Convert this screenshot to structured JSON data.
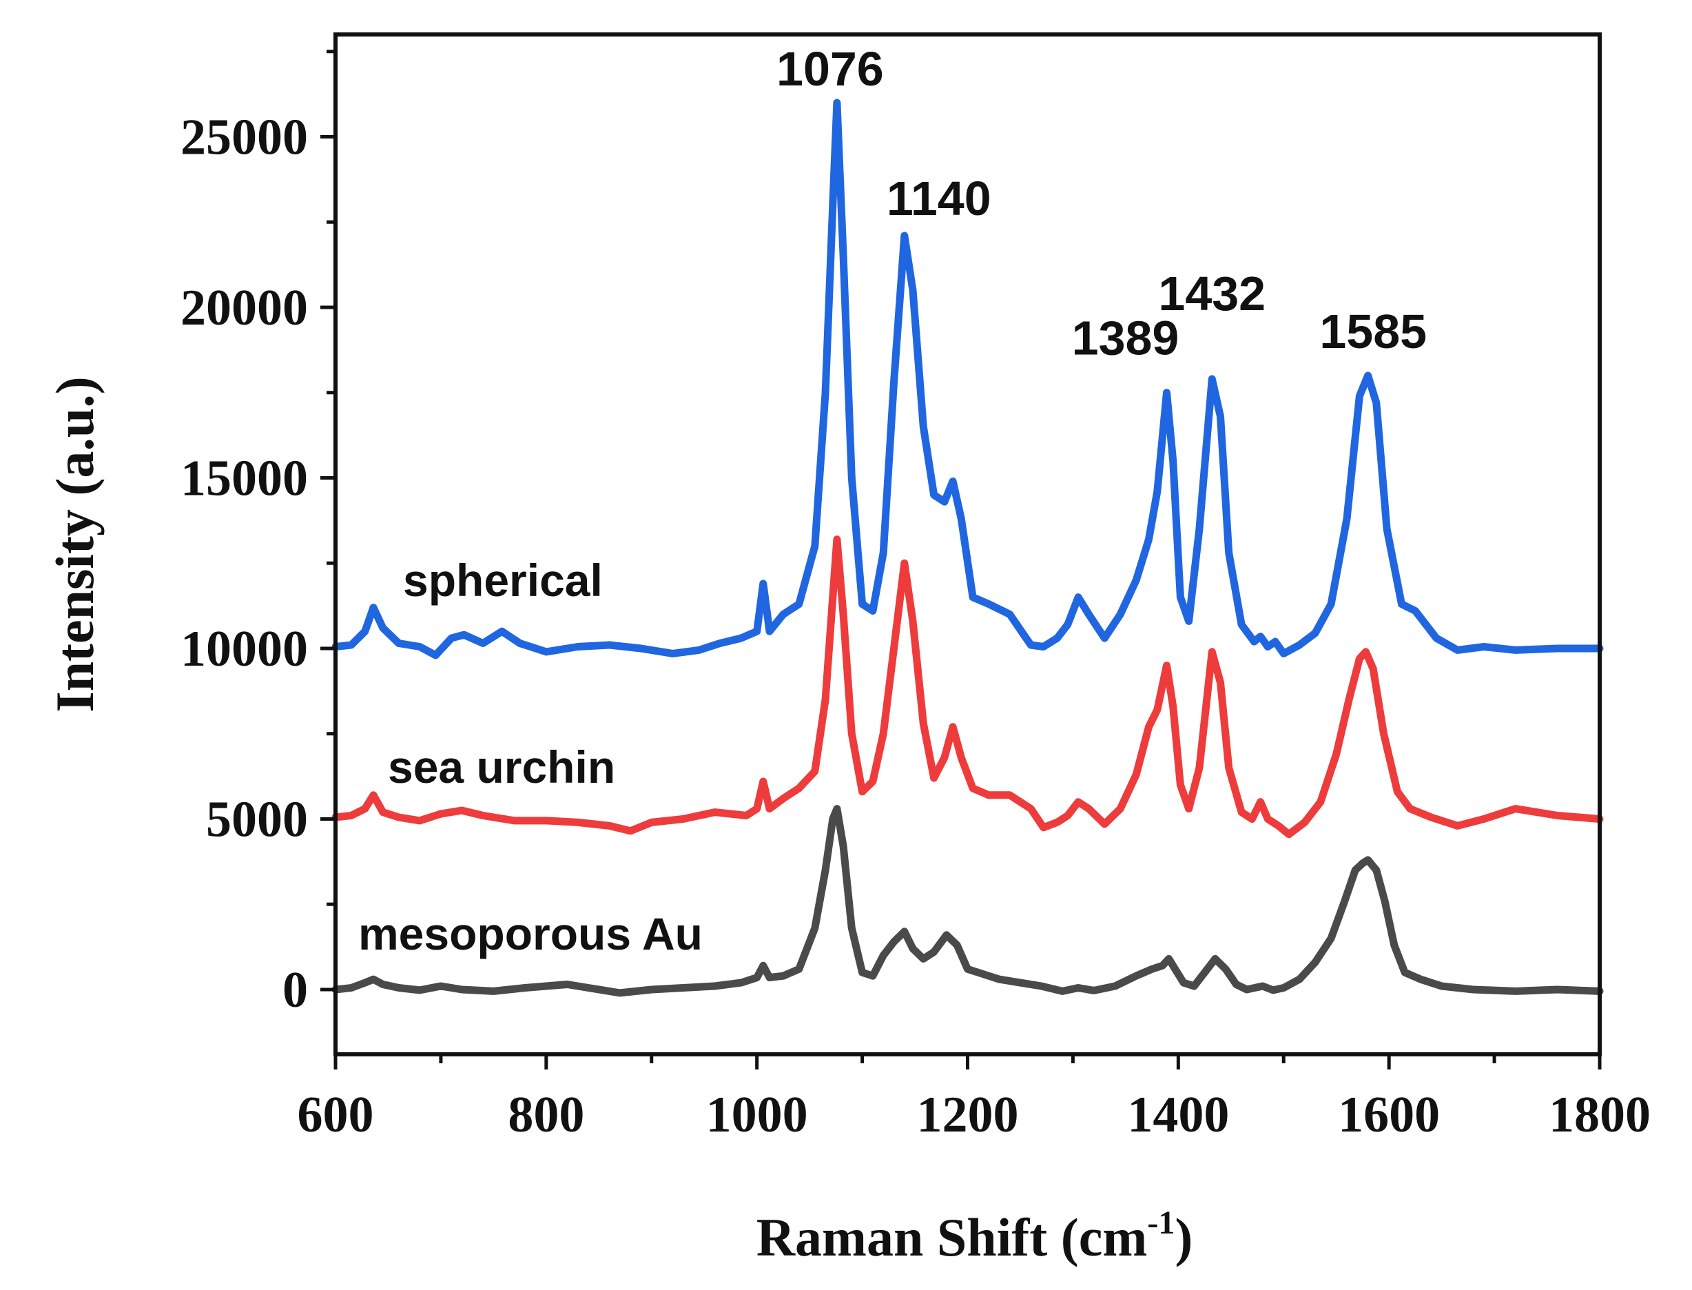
{
  "chart_data": {
    "type": "line",
    "title": "",
    "xlabel": "Raman Shift",
    "xlabel_unit_base": "(cm",
    "xlabel_unit_sup": "-1",
    "xlabel_unit_close": ")",
    "ylabel": "Intensity (a.u.)",
    "xlim": [
      600,
      1800
    ],
    "ylim": [
      -1900,
      28000
    ],
    "x_ticks": [
      600,
      800,
      1000,
      1200,
      1400,
      1600,
      1800
    ],
    "x_tick_labels": [
      "600",
      "800",
      "1000",
      "1200",
      "1400",
      "1600",
      "1800"
    ],
    "y_ticks": [
      0,
      5000,
      10000,
      15000,
      20000,
      25000
    ],
    "y_tick_labels": [
      "0",
      "5000",
      "10000",
      "15000",
      "20000",
      "25000"
    ],
    "series": [
      {
        "name": "spherical",
        "color": "#1f66e0",
        "baseline": 10000,
        "x": [
          600,
          615,
          628,
          636,
          645,
          660,
          680,
          695,
          710,
          722,
          740,
          758,
          775,
          800,
          830,
          860,
          890,
          920,
          945,
          965,
          985,
          1000,
          1006,
          1012,
          1025,
          1040,
          1055,
          1065,
          1072,
          1076,
          1082,
          1090,
          1100,
          1110,
          1120,
          1130,
          1140,
          1148,
          1158,
          1168,
          1178,
          1186,
          1194,
          1205,
          1220,
          1240,
          1260,
          1272,
          1285,
          1295,
          1305,
          1315,
          1330,
          1345,
          1360,
          1372,
          1380,
          1389,
          1395,
          1402,
          1410,
          1420,
          1432,
          1440,
          1448,
          1460,
          1472,
          1478,
          1485,
          1492,
          1500,
          1515,
          1530,
          1545,
          1560,
          1572,
          1580,
          1588,
          1598,
          1612,
          1625,
          1645,
          1665,
          1690,
          1720,
          1760,
          1800
        ],
        "y": [
          10050,
          10100,
          10500,
          11200,
          10600,
          10150,
          10050,
          9800,
          10300,
          10400,
          10150,
          10500,
          10150,
          9900,
          10050,
          10100,
          10000,
          9850,
          9950,
          10150,
          10300,
          10500,
          11900,
          10500,
          11000,
          11300,
          13000,
          17500,
          23000,
          26000,
          21500,
          15000,
          11300,
          11100,
          12800,
          17800,
          22100,
          20500,
          16500,
          14500,
          14300,
          14900,
          13800,
          11500,
          11300,
          11000,
          10100,
          10050,
          10300,
          10700,
          11500,
          11000,
          10300,
          11000,
          12000,
          13200,
          14600,
          17500,
          15500,
          11500,
          10800,
          13500,
          17900,
          16800,
          12800,
          10700,
          10200,
          10350,
          10050,
          10200,
          9850,
          10100,
          10450,
          11300,
          13800,
          17400,
          18000,
          17200,
          13500,
          11300,
          11100,
          10300,
          9950,
          10050,
          9950,
          10000,
          10000
        ]
      },
      {
        "name": "sea urchin",
        "color": "#ee3b3b",
        "baseline": 5000,
        "x": [
          600,
          615,
          628,
          636,
          645,
          660,
          680,
          700,
          720,
          740,
          770,
          800,
          830,
          860,
          880,
          900,
          930,
          960,
          990,
          1000,
          1006,
          1012,
          1025,
          1040,
          1055,
          1065,
          1072,
          1076,
          1082,
          1090,
          1100,
          1110,
          1120,
          1130,
          1140,
          1148,
          1158,
          1168,
          1178,
          1186,
          1194,
          1205,
          1220,
          1240,
          1260,
          1272,
          1285,
          1295,
          1305,
          1315,
          1330,
          1345,
          1360,
          1372,
          1380,
          1389,
          1395,
          1402,
          1410,
          1420,
          1432,
          1440,
          1448,
          1460,
          1470,
          1478,
          1485,
          1495,
          1505,
          1520,
          1535,
          1550,
          1562,
          1572,
          1578,
          1585,
          1595,
          1608,
          1620,
          1640,
          1665,
          1690,
          1720,
          1760,
          1800
        ],
        "y": [
          5050,
          5100,
          5300,
          5700,
          5200,
          5050,
          4950,
          5150,
          5250,
          5100,
          4950,
          4950,
          4900,
          4800,
          4650,
          4900,
          5000,
          5200,
          5100,
          5300,
          6100,
          5300,
          5600,
          5900,
          6400,
          8500,
          11500,
          13200,
          11000,
          7500,
          5800,
          6100,
          7500,
          10000,
          12500,
          10800,
          7800,
          6200,
          6800,
          7700,
          6800,
          5900,
          5700,
          5700,
          5300,
          4750,
          4900,
          5100,
          5500,
          5300,
          4850,
          5300,
          6300,
          7700,
          8200,
          9500,
          8300,
          6000,
          5300,
          6500,
          9900,
          9000,
          6500,
          5200,
          5000,
          5500,
          5000,
          4800,
          4550,
          4900,
          5500,
          6900,
          8500,
          9700,
          9900,
          9400,
          7500,
          5800,
          5300,
          5050,
          4800,
          5000,
          5300,
          5100,
          5000
        ]
      },
      {
        "name": "mesoporous Au",
        "color": "#4a4a4a",
        "baseline": 0,
        "x": [
          600,
          615,
          628,
          636,
          645,
          660,
          680,
          700,
          720,
          750,
          780,
          800,
          820,
          840,
          870,
          900,
          930,
          960,
          985,
          1000,
          1006,
          1012,
          1025,
          1040,
          1055,
          1065,
          1072,
          1076,
          1082,
          1090,
          1100,
          1110,
          1120,
          1130,
          1140,
          1148,
          1158,
          1168,
          1180,
          1190,
          1200,
          1215,
          1230,
          1250,
          1270,
          1290,
          1305,
          1320,
          1340,
          1360,
          1375,
          1385,
          1391,
          1397,
          1405,
          1415,
          1425,
          1435,
          1445,
          1455,
          1465,
          1480,
          1490,
          1500,
          1515,
          1530,
          1545,
          1558,
          1568,
          1575,
          1580,
          1588,
          1596,
          1605,
          1615,
          1630,
          1650,
          1680,
          1720,
          1760,
          1800
        ],
        "y": [
          0,
          50,
          200,
          300,
          150,
          50,
          -20,
          100,
          0,
          -50,
          50,
          100,
          150,
          50,
          -100,
          0,
          50,
          100,
          200,
          350,
          700,
          350,
          400,
          600,
          1800,
          3500,
          5000,
          5300,
          4200,
          1800,
          500,
          400,
          1000,
          1400,
          1700,
          1200,
          900,
          1100,
          1600,
          1300,
          600,
          450,
          300,
          200,
          100,
          -50,
          50,
          -30,
          100,
          400,
          600,
          700,
          900,
          600,
          200,
          100,
          500,
          900,
          600,
          150,
          0,
          100,
          -20,
          50,
          300,
          800,
          1500,
          2600,
          3500,
          3700,
          3800,
          3500,
          2600,
          1300,
          500,
          300,
          100,
          0,
          -50,
          0,
          -50
        ]
      }
    ],
    "peak_labels": [
      {
        "text": "1076",
        "x": 1076,
        "y": 26000
      },
      {
        "text": "1140",
        "x": 1140,
        "y": 22100
      },
      {
        "text": "1389",
        "x": 1389,
        "y": 17500
      },
      {
        "text": "1432",
        "x": 1432,
        "y": 17900
      },
      {
        "text": "1585",
        "x": 1585,
        "y": 18000
      }
    ],
    "legend": "inline labels above each trace (left)"
  }
}
